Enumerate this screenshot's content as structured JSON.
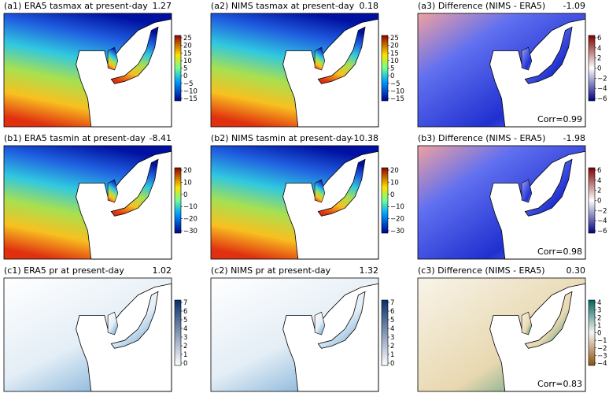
{
  "panels": [
    {
      "title": "(a1) ERA5 tasmax at present-day",
      "value": "1.27",
      "colorbar": [
        "25",
        "20",
        "15",
        "10",
        "5",
        "0",
        "−5",
        "−10",
        "−15"
      ]
    },
    {
      "title": "(a2) NIMS tasmax at present-day",
      "value": "0.18",
      "colorbar": [
        "25",
        "20",
        "15",
        "10",
        "5",
        "0",
        "−5",
        "−10",
        "−15"
      ]
    },
    {
      "title": "(a3) Difference (NIMS - ERA5)",
      "value": "-1.09",
      "colorbar": [
        "6",
        "4",
        "2",
        "0",
        "−2",
        "−4",
        "−6"
      ],
      "corr": "Corr=0.99"
    },
    {
      "title": "(b1) ERA5 tasmin at present-day",
      "value": "-8.41",
      "colorbar": [
        "20",
        "10",
        "0",
        "−10",
        "−20",
        "−30"
      ]
    },
    {
      "title": "(b2) NIMS tasmin at present-day",
      "value": "-10.38",
      "colorbar": [
        "20",
        "10",
        "0",
        "−10",
        "−20",
        "−30"
      ]
    },
    {
      "title": "(b3) Difference (NIMS - ERA5)",
      "value": "-1.98",
      "colorbar": [
        "6",
        "4",
        "2",
        "0",
        "−2",
        "−4",
        "−6"
      ],
      "corr": "Corr=0.98"
    },
    {
      "title": "(c1) ERA5 pr at present-day",
      "value": "1.02",
      "colorbar": [
        "7",
        "6",
        "5",
        "4",
        "3",
        "2",
        "1",
        "0"
      ]
    },
    {
      "title": "(c2) NIMS pr at present-day",
      "value": "1.32",
      "colorbar": [
        "7",
        "6",
        "5",
        "4",
        "3",
        "2",
        "1",
        "0"
      ]
    },
    {
      "title": "(c3) Difference (NIMS - ERA5)",
      "value": "0.30",
      "colorbar": [
        "4",
        "3",
        "2",
        "1",
        "0",
        "−1",
        "−2",
        "−3",
        "−4"
      ],
      "corr": "Corr=0.83"
    }
  ]
}
